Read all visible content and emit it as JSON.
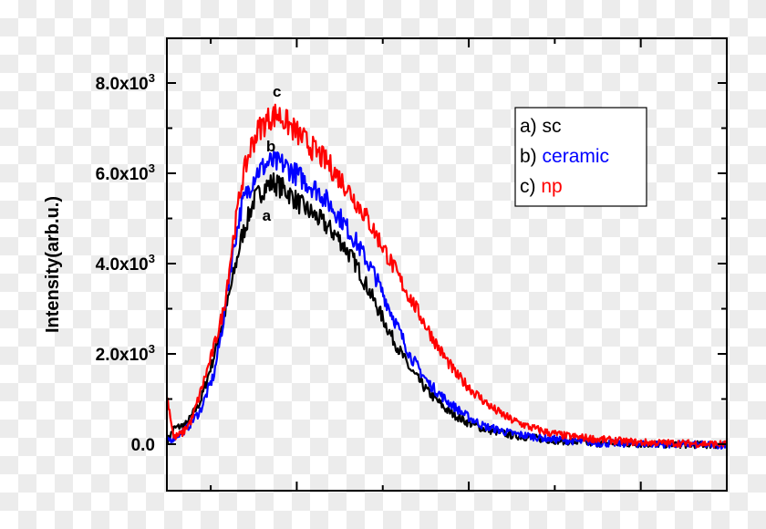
{
  "chart_data": {
    "type": "line",
    "title": "",
    "xlabel": "",
    "ylabel": "Intensity(arb.u.)",
    "xlim": [
      -0.51,
      6.0
    ],
    "ylim": [
      -1030,
      8990
    ],
    "x_ticks": [
      0,
      1,
      2,
      3,
      4,
      5,
      6
    ],
    "y_ticks": [
      {
        "value": 0,
        "label": "0.0",
        "exp": ""
      },
      {
        "value": 2000,
        "label": "2.0x10",
        "exp": "3"
      },
      {
        "value": 4000,
        "label": "4.0x10",
        "exp": "3"
      },
      {
        "value": 6000,
        "label": "6.0x10",
        "exp": "3"
      },
      {
        "value": 8000,
        "label": "8.0x10",
        "exp": "3"
      }
    ],
    "y_minor_ticks": [
      1000,
      3000,
      5000,
      7000
    ],
    "grid": false,
    "legend": {
      "placement": "top-right",
      "entries": [
        {
          "prefix": "a) ",
          "name": "sc",
          "color": "#000000"
        },
        {
          "prefix": "b) ",
          "name": "ceramic",
          "color": "#0000ff"
        },
        {
          "prefix": "c) ",
          "name": "np",
          "color": "#ff0000"
        }
      ]
    },
    "series": [
      {
        "name": "a",
        "color": "#000000",
        "points": [
          [
            -0.5,
            80
          ],
          [
            -0.43,
            343
          ],
          [
            -0.28,
            444
          ],
          [
            -0.12,
            949
          ],
          [
            0.04,
            1959
          ],
          [
            0.2,
            3171
          ],
          [
            0.36,
            4585
          ],
          [
            0.5,
            5393
          ],
          [
            0.63,
            5696
          ],
          [
            0.73,
            5797
          ],
          [
            0.89,
            5595
          ],
          [
            1.05,
            5292
          ],
          [
            1.26,
            4989
          ],
          [
            1.48,
            4585
          ],
          [
            1.69,
            3979
          ],
          [
            1.9,
            3171
          ],
          [
            2.11,
            2363
          ],
          [
            2.32,
            1656
          ],
          [
            2.53,
            1151
          ],
          [
            2.75,
            747
          ],
          [
            2.96,
            505
          ],
          [
            3.17,
            343
          ],
          [
            3.49,
            202
          ],
          [
            3.91,
            101
          ],
          [
            4.44,
            20
          ],
          [
            6.0,
            -20
          ]
        ]
      },
      {
        "name": "b",
        "color": "#0000ff",
        "points": [
          [
            -0.5,
            80
          ],
          [
            -0.43,
            141
          ],
          [
            -0.28,
            343
          ],
          [
            -0.12,
            747
          ],
          [
            0.04,
            1555
          ],
          [
            0.15,
            2767
          ],
          [
            0.25,
            4181
          ],
          [
            0.36,
            5292
          ],
          [
            0.52,
            5999
          ],
          [
            0.68,
            6242
          ],
          [
            0.84,
            6201
          ],
          [
            1.05,
            5898
          ],
          [
            1.26,
            5595
          ],
          [
            1.48,
            5090
          ],
          [
            1.69,
            4484
          ],
          [
            1.9,
            3777
          ],
          [
            2.11,
            2868
          ],
          [
            2.32,
            1959
          ],
          [
            2.53,
            1353
          ],
          [
            2.75,
            949
          ],
          [
            2.96,
            646
          ],
          [
            3.17,
            404
          ],
          [
            3.49,
            242
          ],
          [
            3.91,
            121
          ],
          [
            4.55,
            20
          ],
          [
            6.0,
            -20
          ]
        ]
      },
      {
        "name": "c",
        "color": "#ff0000",
        "points": [
          [
            -0.5,
            1000
          ],
          [
            -0.43,
            141
          ],
          [
            -0.33,
            242
          ],
          [
            -0.22,
            545
          ],
          [
            -0.12,
            1151
          ],
          [
            0.01,
            1959
          ],
          [
            0.15,
            2969
          ],
          [
            0.25,
            4383
          ],
          [
            0.36,
            5797
          ],
          [
            0.47,
            6605
          ],
          [
            0.57,
            7009
          ],
          [
            0.7,
            7252
          ],
          [
            0.78,
            7312
          ],
          [
            0.89,
            7110
          ],
          [
            1.05,
            6807
          ],
          [
            1.21,
            6504
          ],
          [
            1.37,
            6201
          ],
          [
            1.58,
            5696
          ],
          [
            1.79,
            5090
          ],
          [
            2.0,
            4383
          ],
          [
            2.22,
            3575
          ],
          [
            2.43,
            2868
          ],
          [
            2.64,
            2161
          ],
          [
            2.85,
            1555
          ],
          [
            3.06,
            1151
          ],
          [
            3.28,
            788
          ],
          [
            3.49,
            545
          ],
          [
            3.7,
            384
          ],
          [
            3.91,
            263
          ],
          [
            4.13,
            182
          ],
          [
            4.55,
            101
          ],
          [
            4.97,
            40
          ],
          [
            6.0,
            0
          ]
        ]
      }
    ],
    "annotations": [
      {
        "text": "a",
        "x": 0.65,
        "y": 4950
      },
      {
        "text": "b",
        "x": 0.7,
        "y": 6480
      },
      {
        "text": "c",
        "x": 0.77,
        "y": 7700
      }
    ]
  }
}
